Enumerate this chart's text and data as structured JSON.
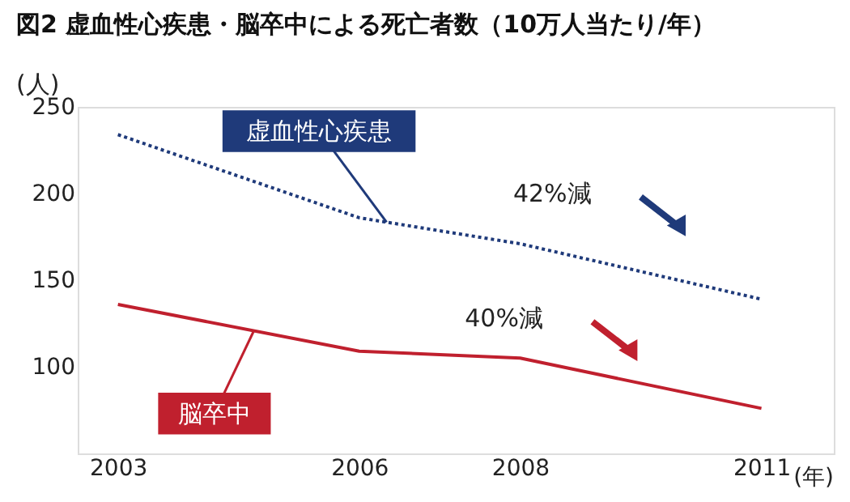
{
  "chart_data": {
    "type": "line",
    "title": "図2 虚血性心疾患・脳卒中による死亡者数（10万人当たり/年）",
    "ylabel": "(人)",
    "xlabel": "(年)",
    "x": [
      2003,
      2006,
      2008,
      2011
    ],
    "series": [
      {
        "name": "虚血性心疾患",
        "color": "#1f3a7a",
        "values": [
          234,
          186,
          171,
          139
        ],
        "line_style": "dotted"
      },
      {
        "name": "脳卒中",
        "color": "#c0202e",
        "values": [
          136,
          109,
          105,
          76
        ],
        "line_style": "solid"
      }
    ],
    "xlim": [
      2002.5,
      2011.9
    ],
    "ylim": [
      50,
      250
    ],
    "xticks": [
      2003,
      2006,
      2008,
      2011
    ],
    "yticks": [
      100,
      150,
      200,
      250
    ],
    "annotations": [
      "42%減",
      "40%減"
    ],
    "grid": false,
    "legend": false,
    "marker": "none"
  }
}
